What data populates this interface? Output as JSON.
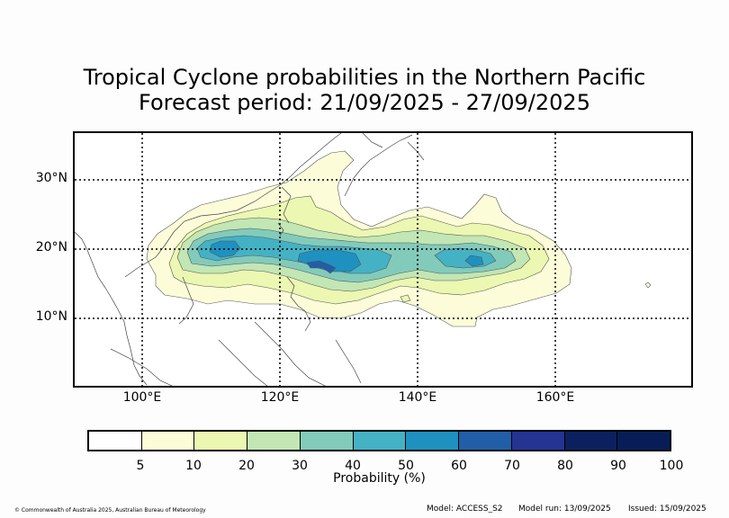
{
  "title_line1": "Tropical Cyclone probabilities in the Northern Pacific",
  "title_line2": "Forecast period: 21/09/2025 - 27/09/2025",
  "lat_labels": [
    "30°N",
    "20°N",
    "10°N"
  ],
  "lon_labels": [
    "100°E",
    "120°E",
    "140°E",
    "160°E"
  ],
  "colorbar": {
    "label": "Probability (%)",
    "ticks": [
      "5",
      "10",
      "20",
      "30",
      "40",
      "50",
      "60",
      "70",
      "80",
      "90",
      "100"
    ],
    "colors": [
      "#ffffff",
      "#fcfdd8",
      "#ecf7b2",
      "#c2e6b4",
      "#82cbbb",
      "#44b2c4",
      "#1f91c0",
      "#225ea8",
      "#253393",
      "#0c2060",
      "#081d58"
    ]
  },
  "footer": {
    "copyright": "© Commonwealth of Australia 2025, Australian Bureau of Meteorology",
    "model": "Model: ACCESS_S2",
    "run": "Model run: 13/09/2025",
    "issued": "Issued: 15/09/2025"
  }
}
